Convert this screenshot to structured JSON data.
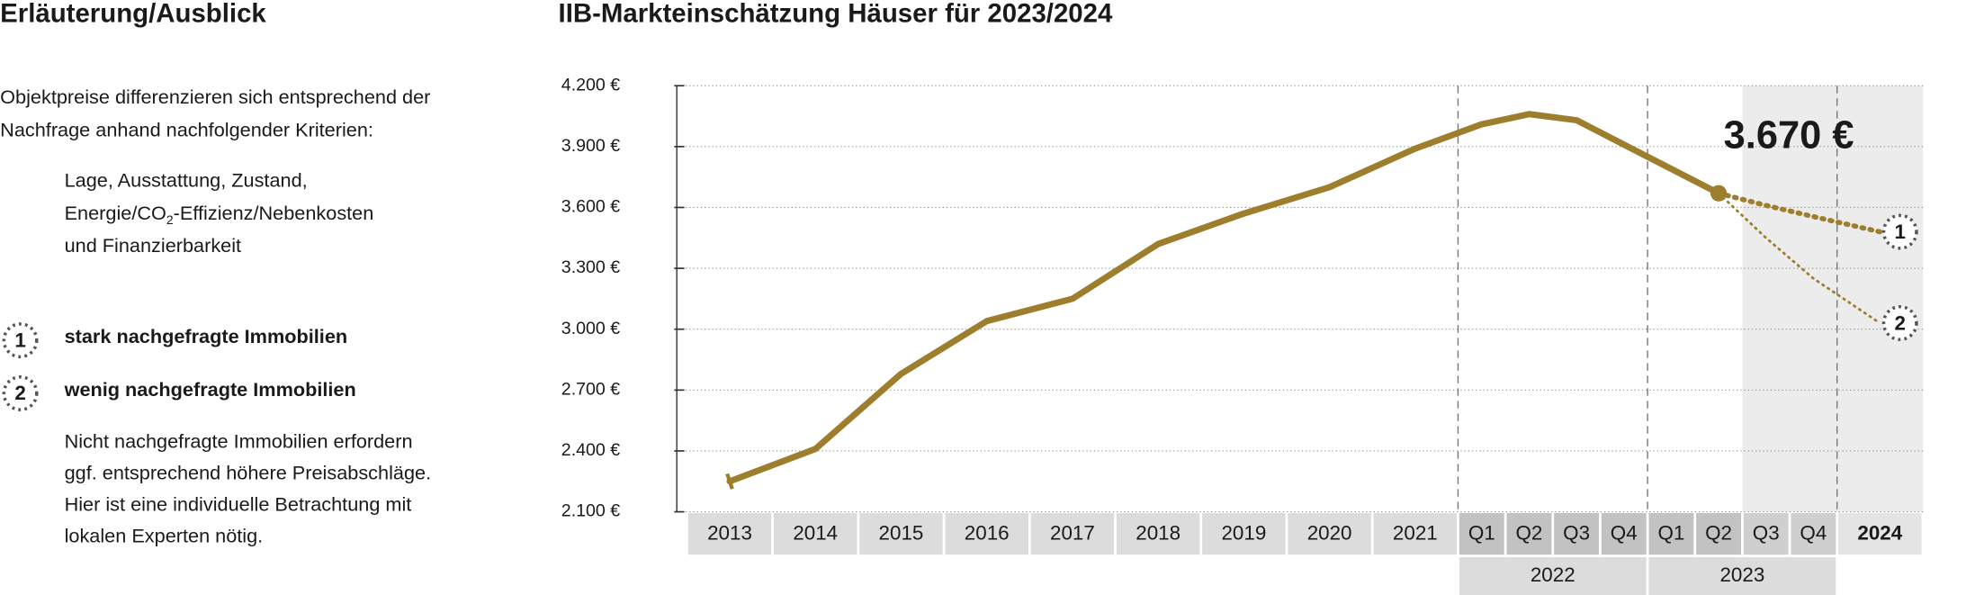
{
  "explanation": {
    "title": "Erläuterung/Ausblick",
    "intro": [
      "Objektpreise differenzieren sich entsprechend der",
      "Nachfrage anhand nachfolgender Kriterien:"
    ],
    "criteria": [
      "Lage, Ausstattung, Zustand,",
      [
        "Energie/CO",
        "2",
        "-Effizienz/Nebenkosten"
      ],
      "und Finanzierbarkeit"
    ],
    "note": [
      "Nicht nachgefragte Immobilien erfordern",
      "ggf. entsprechend höhere Preisabschläge.",
      "Hier ist eine individuelle Betrachtung mit",
      "lokalen Experten nötig."
    ]
  },
  "chart_data": {
    "type": "line",
    "title": "IIB-Markteinschätzung Häuser für 2023/2024",
    "categories": [
      "2013",
      "2014",
      "2015",
      "2016",
      "2017",
      "2018",
      "2019",
      "2020",
      "2021",
      "Q1",
      "Q2",
      "Q3",
      "Q4",
      "Q1",
      "Q2",
      "Q3",
      "Q4",
      "2024"
    ],
    "x_groups": [
      null,
      null,
      null,
      null,
      null,
      null,
      null,
      null,
      null,
      "2022",
      "2022",
      "2022",
      "2022",
      "2023",
      "2023",
      "2023",
      "2023",
      null
    ],
    "series": [
      {
        "color": "#9c7e2c",
        "style": "solid",
        "values": [
          2250,
          2410,
          2780,
          3040,
          3150,
          3420,
          3570,
          3700,
          3890,
          4010,
          4060,
          4030,
          3910,
          3790,
          3670,
          null,
          null,
          null
        ],
        "value_labels": [
          null,
          null,
          null,
          null,
          null,
          null,
          null,
          null,
          null,
          null,
          null,
          null,
          null,
          null,
          "3.670 €",
          null,
          null,
          null
        ]
      },
      {
        "name": "stark nachgefragte Immobilien",
        "marker": "1",
        "color": "#9c7e2c",
        "style": "dotted-thick",
        "values": [
          null,
          null,
          null,
          null,
          null,
          null,
          null,
          null,
          null,
          null,
          null,
          null,
          null,
          null,
          3670,
          3610,
          3555,
          3480
        ]
      },
      {
        "name": "wenig nachgefragte Immobilien",
        "marker": "2",
        "color": "#9c7e2c",
        "style": "dotted-thin",
        "values": [
          null,
          null,
          null,
          null,
          null,
          null,
          null,
          null,
          null,
          null,
          null,
          null,
          null,
          null,
          3670,
          3450,
          3250,
          3030
        ]
      }
    ],
    "ylim": [
      2100,
      4200
    ],
    "yticks": [
      {
        "value": 2100,
        "label": "2.100 €"
      },
      {
        "value": 2400,
        "label": "2.400 €"
      },
      {
        "value": 2700,
        "label": "2.700 €"
      },
      {
        "value": 3000,
        "label": "3.000 €"
      },
      {
        "value": 3300,
        "label": "3.300 €"
      },
      {
        "value": 3600,
        "label": "3.600 €"
      },
      {
        "value": 3900,
        "label": "3.900 €"
      },
      {
        "value": 4200,
        "label": "4.200 €"
      }
    ],
    "grid": true
  }
}
